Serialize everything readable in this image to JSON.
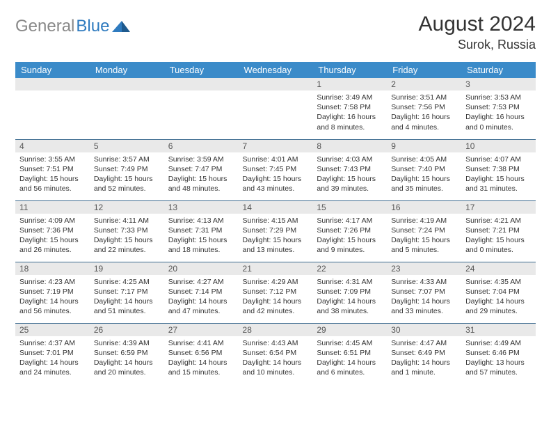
{
  "brand": {
    "part1": "General",
    "part2": "Blue"
  },
  "title": "August 2024",
  "location": "Surok, Russia",
  "colors": {
    "header_bg": "#3b8bc9",
    "header_fg": "#ffffff",
    "daynum_bg": "#e9e9e9",
    "row_border": "#3b6a8f",
    "logo_gray": "#888888",
    "logo_blue": "#2f7bbf"
  },
  "day_names": [
    "Sunday",
    "Monday",
    "Tuesday",
    "Wednesday",
    "Thursday",
    "Friday",
    "Saturday"
  ],
  "weeks": [
    [
      {
        "n": "",
        "sr": "",
        "ss": "",
        "dl1": "",
        "dl2": ""
      },
      {
        "n": "",
        "sr": "",
        "ss": "",
        "dl1": "",
        "dl2": ""
      },
      {
        "n": "",
        "sr": "",
        "ss": "",
        "dl1": "",
        "dl2": ""
      },
      {
        "n": "",
        "sr": "",
        "ss": "",
        "dl1": "",
        "dl2": ""
      },
      {
        "n": "1",
        "sr": "Sunrise: 3:49 AM",
        "ss": "Sunset: 7:58 PM",
        "dl1": "Daylight: 16 hours",
        "dl2": "and 8 minutes."
      },
      {
        "n": "2",
        "sr": "Sunrise: 3:51 AM",
        "ss": "Sunset: 7:56 PM",
        "dl1": "Daylight: 16 hours",
        "dl2": "and 4 minutes."
      },
      {
        "n": "3",
        "sr": "Sunrise: 3:53 AM",
        "ss": "Sunset: 7:53 PM",
        "dl1": "Daylight: 16 hours",
        "dl2": "and 0 minutes."
      }
    ],
    [
      {
        "n": "4",
        "sr": "Sunrise: 3:55 AM",
        "ss": "Sunset: 7:51 PM",
        "dl1": "Daylight: 15 hours",
        "dl2": "and 56 minutes."
      },
      {
        "n": "5",
        "sr": "Sunrise: 3:57 AM",
        "ss": "Sunset: 7:49 PM",
        "dl1": "Daylight: 15 hours",
        "dl2": "and 52 minutes."
      },
      {
        "n": "6",
        "sr": "Sunrise: 3:59 AM",
        "ss": "Sunset: 7:47 PM",
        "dl1": "Daylight: 15 hours",
        "dl2": "and 48 minutes."
      },
      {
        "n": "7",
        "sr": "Sunrise: 4:01 AM",
        "ss": "Sunset: 7:45 PM",
        "dl1": "Daylight: 15 hours",
        "dl2": "and 43 minutes."
      },
      {
        "n": "8",
        "sr": "Sunrise: 4:03 AM",
        "ss": "Sunset: 7:43 PM",
        "dl1": "Daylight: 15 hours",
        "dl2": "and 39 minutes."
      },
      {
        "n": "9",
        "sr": "Sunrise: 4:05 AM",
        "ss": "Sunset: 7:40 PM",
        "dl1": "Daylight: 15 hours",
        "dl2": "and 35 minutes."
      },
      {
        "n": "10",
        "sr": "Sunrise: 4:07 AM",
        "ss": "Sunset: 7:38 PM",
        "dl1": "Daylight: 15 hours",
        "dl2": "and 31 minutes."
      }
    ],
    [
      {
        "n": "11",
        "sr": "Sunrise: 4:09 AM",
        "ss": "Sunset: 7:36 PM",
        "dl1": "Daylight: 15 hours",
        "dl2": "and 26 minutes."
      },
      {
        "n": "12",
        "sr": "Sunrise: 4:11 AM",
        "ss": "Sunset: 7:33 PM",
        "dl1": "Daylight: 15 hours",
        "dl2": "and 22 minutes."
      },
      {
        "n": "13",
        "sr": "Sunrise: 4:13 AM",
        "ss": "Sunset: 7:31 PM",
        "dl1": "Daylight: 15 hours",
        "dl2": "and 18 minutes."
      },
      {
        "n": "14",
        "sr": "Sunrise: 4:15 AM",
        "ss": "Sunset: 7:29 PM",
        "dl1": "Daylight: 15 hours",
        "dl2": "and 13 minutes."
      },
      {
        "n": "15",
        "sr": "Sunrise: 4:17 AM",
        "ss": "Sunset: 7:26 PM",
        "dl1": "Daylight: 15 hours",
        "dl2": "and 9 minutes."
      },
      {
        "n": "16",
        "sr": "Sunrise: 4:19 AM",
        "ss": "Sunset: 7:24 PM",
        "dl1": "Daylight: 15 hours",
        "dl2": "and 5 minutes."
      },
      {
        "n": "17",
        "sr": "Sunrise: 4:21 AM",
        "ss": "Sunset: 7:21 PM",
        "dl1": "Daylight: 15 hours",
        "dl2": "and 0 minutes."
      }
    ],
    [
      {
        "n": "18",
        "sr": "Sunrise: 4:23 AM",
        "ss": "Sunset: 7:19 PM",
        "dl1": "Daylight: 14 hours",
        "dl2": "and 56 minutes."
      },
      {
        "n": "19",
        "sr": "Sunrise: 4:25 AM",
        "ss": "Sunset: 7:17 PM",
        "dl1": "Daylight: 14 hours",
        "dl2": "and 51 minutes."
      },
      {
        "n": "20",
        "sr": "Sunrise: 4:27 AM",
        "ss": "Sunset: 7:14 PM",
        "dl1": "Daylight: 14 hours",
        "dl2": "and 47 minutes."
      },
      {
        "n": "21",
        "sr": "Sunrise: 4:29 AM",
        "ss": "Sunset: 7:12 PM",
        "dl1": "Daylight: 14 hours",
        "dl2": "and 42 minutes."
      },
      {
        "n": "22",
        "sr": "Sunrise: 4:31 AM",
        "ss": "Sunset: 7:09 PM",
        "dl1": "Daylight: 14 hours",
        "dl2": "and 38 minutes."
      },
      {
        "n": "23",
        "sr": "Sunrise: 4:33 AM",
        "ss": "Sunset: 7:07 PM",
        "dl1": "Daylight: 14 hours",
        "dl2": "and 33 minutes."
      },
      {
        "n": "24",
        "sr": "Sunrise: 4:35 AM",
        "ss": "Sunset: 7:04 PM",
        "dl1": "Daylight: 14 hours",
        "dl2": "and 29 minutes."
      }
    ],
    [
      {
        "n": "25",
        "sr": "Sunrise: 4:37 AM",
        "ss": "Sunset: 7:01 PM",
        "dl1": "Daylight: 14 hours",
        "dl2": "and 24 minutes."
      },
      {
        "n": "26",
        "sr": "Sunrise: 4:39 AM",
        "ss": "Sunset: 6:59 PM",
        "dl1": "Daylight: 14 hours",
        "dl2": "and 20 minutes."
      },
      {
        "n": "27",
        "sr": "Sunrise: 4:41 AM",
        "ss": "Sunset: 6:56 PM",
        "dl1": "Daylight: 14 hours",
        "dl2": "and 15 minutes."
      },
      {
        "n": "28",
        "sr": "Sunrise: 4:43 AM",
        "ss": "Sunset: 6:54 PM",
        "dl1": "Daylight: 14 hours",
        "dl2": "and 10 minutes."
      },
      {
        "n": "29",
        "sr": "Sunrise: 4:45 AM",
        "ss": "Sunset: 6:51 PM",
        "dl1": "Daylight: 14 hours",
        "dl2": "and 6 minutes."
      },
      {
        "n": "30",
        "sr": "Sunrise: 4:47 AM",
        "ss": "Sunset: 6:49 PM",
        "dl1": "Daylight: 14 hours",
        "dl2": "and 1 minute."
      },
      {
        "n": "31",
        "sr": "Sunrise: 4:49 AM",
        "ss": "Sunset: 6:46 PM",
        "dl1": "Daylight: 13 hours",
        "dl2": "and 57 minutes."
      }
    ]
  ]
}
